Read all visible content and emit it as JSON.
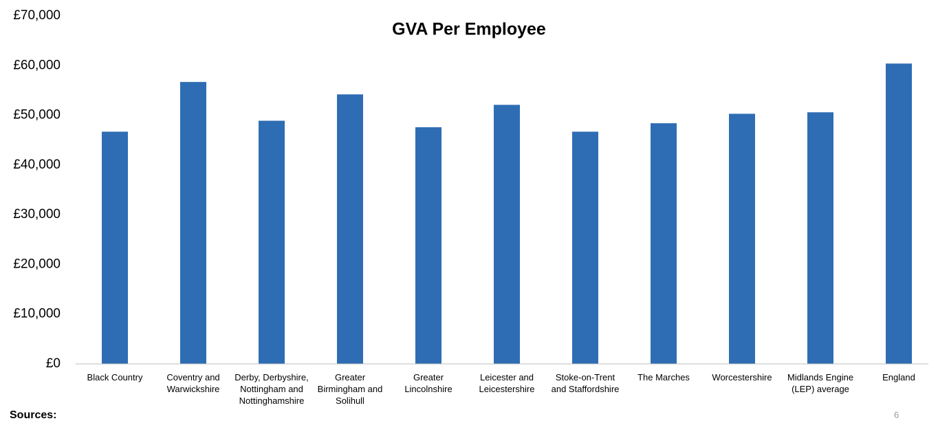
{
  "chart_data": {
    "type": "bar",
    "title": "GVA Per Employee",
    "categories": [
      "Black Country",
      "Coventry and Warwickshire",
      "Derby, Derbyshire, Nottingham and Nottinghamshire",
      "Greater Birmingham and Solihull",
      "Greater Lincolnshire",
      "Leicester and Leicestershire",
      "Stoke-on-Trent and Staffordshire",
      "The Marches",
      "Worcestershire",
      "Midlands Engine (LEP) average",
      "England"
    ],
    "values": [
      46700,
      56700,
      48900,
      54200,
      47600,
      52100,
      46700,
      48400,
      50300,
      50600,
      60400
    ],
    "color": "#2e6db4",
    "ylim": [
      0,
      70000
    ],
    "yticks": [
      {
        "value": 0,
        "label": "£0"
      },
      {
        "value": 10000,
        "label": "£10,000"
      },
      {
        "value": 20000,
        "label": "£20,000"
      },
      {
        "value": 30000,
        "label": "£30,000"
      },
      {
        "value": 40000,
        "label": "£40,000"
      },
      {
        "value": 50000,
        "label": "£50,000"
      },
      {
        "value": 60000,
        "label": "£60,000"
      },
      {
        "value": 70000,
        "label": "£70,000"
      }
    ],
    "grid": false
  },
  "footer": {
    "sources": "Sources:",
    "page_number": "6"
  }
}
